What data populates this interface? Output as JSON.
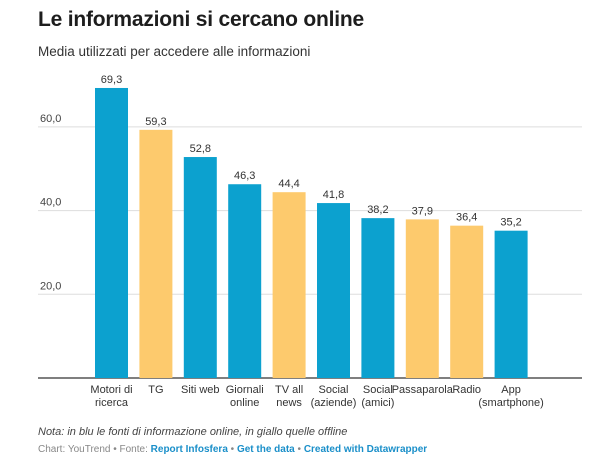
{
  "title": "Le informazioni si cercano online",
  "subtitle": "Media utilizzati per accedere alle informazioni",
  "note": "Nota: in blu le fonti di informazione online, in giallo quelle offline",
  "footer": {
    "prefix": "Chart: YouTrend • Fonte: ",
    "source_link": "Report Infosfera",
    "sep1": " • ",
    "data_link": "Get the data",
    "sep2": " • ",
    "dw_link": "Created with Datawrapper"
  },
  "colors": {
    "online": "#0ca1cf",
    "offline": "#fdca6d",
    "grid": "#dddddd",
    "axis": "#333333"
  },
  "chart_data": {
    "type": "bar",
    "categories": [
      [
        "Motori di",
        "ricerca"
      ],
      [
        "TG"
      ],
      [
        "Siti web"
      ],
      [
        "Giornali",
        "online"
      ],
      [
        "TV all",
        "news"
      ],
      [
        "Social",
        "(aziende)"
      ],
      [
        "Social",
        "(amici)"
      ],
      [
        "Passaparola"
      ],
      [
        "Radio"
      ],
      [
        "App",
        "(smartphone)"
      ]
    ],
    "values": [
      69.3,
      59.3,
      52.8,
      46.3,
      44.4,
      41.8,
      38.2,
      37.9,
      36.4,
      35.2
    ],
    "value_labels": [
      "69,3",
      "59,3",
      "52,8",
      "46,3",
      "44,4",
      "41,8",
      "38,2",
      "37,9",
      "36,4",
      "35,2"
    ],
    "groups": [
      "online",
      "offline",
      "online",
      "online",
      "offline",
      "online",
      "online",
      "offline",
      "offline",
      "online"
    ],
    "yticks": [
      20,
      40,
      60
    ],
    "ytick_labels": [
      "20,0",
      "40,0",
      "60,0"
    ],
    "ylim": [
      0,
      69.3
    ],
    "grid": true,
    "legend": "none"
  }
}
